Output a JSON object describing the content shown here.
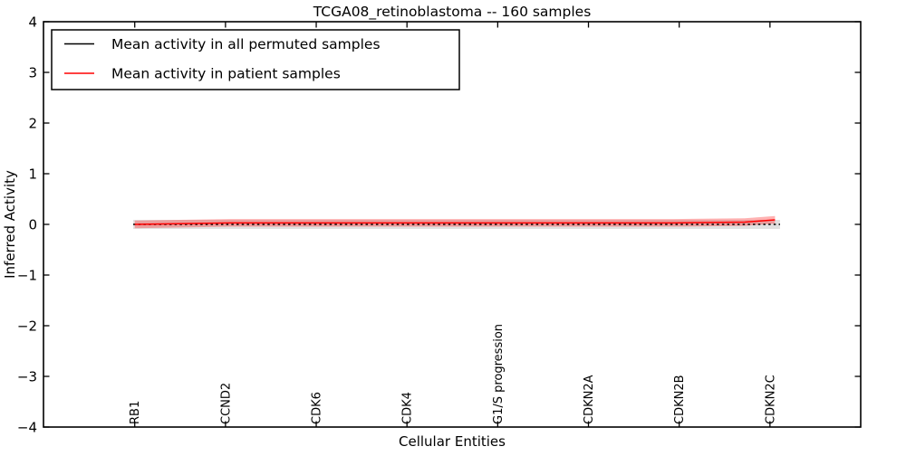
{
  "figure": {
    "background": "#ffffff",
    "frame_color": "#000000"
  },
  "chart_data": {
    "type": "line",
    "title": "TCGA08_retinoblastoma -- 160 samples",
    "xlabel": "Cellular Entities",
    "ylabel": "Inferred Activity",
    "ylim": [
      -4,
      4
    ],
    "xlim": [
      -17.1,
      145
    ],
    "grid": false,
    "yticks": [
      {
        "v": 4,
        "label": "4"
      },
      {
        "v": 3,
        "label": "3"
      },
      {
        "v": 2,
        "label": "2"
      },
      {
        "v": 1,
        "label": "1"
      },
      {
        "v": 0,
        "label": "0"
      },
      {
        "v": -1,
        "label": "−1"
      },
      {
        "v": -2,
        "label": "−2"
      },
      {
        "v": -3,
        "label": "−3"
      },
      {
        "v": -4,
        "label": "−4"
      }
    ],
    "xticks": [
      {
        "v": 1,
        "label": "RB1"
      },
      {
        "v": 19,
        "label": "CCND2"
      },
      {
        "v": 37,
        "label": "CDK6"
      },
      {
        "v": 55,
        "label": "CDK4"
      },
      {
        "v": 73,
        "label": "G1/S progression"
      },
      {
        "v": 91,
        "label": "CDKN2A"
      },
      {
        "v": 109,
        "label": "CDKN2B"
      },
      {
        "v": 127,
        "label": "CDKN2C"
      }
    ],
    "x_unit": "cellular entity index (~128 entities along the pathway)",
    "series": [
      {
        "name": "Mean activity in all permuted samples",
        "color": "#000000",
        "line_style": "dashed",
        "band": {
          "color": "#888888",
          "opacity": 0.25,
          "halfwidth": 0.09
        },
        "points": [
          [
            0.7,
            0.0
          ],
          [
            129,
            0.0
          ]
        ]
      },
      {
        "name": "Mean activity in patient samples",
        "color": "#ff0000",
        "line_style": "solid",
        "band": {
          "color": "#ff0000",
          "opacity": 0.3,
          "halfwidth": 0.075
        },
        "points": [
          [
            1,
            0.0
          ],
          [
            20,
            0.03
          ],
          [
            108,
            0.03
          ],
          [
            122,
            0.045
          ],
          [
            128,
            0.09
          ]
        ]
      }
    ],
    "legend": {
      "position": "upper left",
      "entries": [
        {
          "label": "Mean activity in all permuted samples",
          "color": "#000000"
        },
        {
          "label": "Mean activity in patient samples",
          "color": "#ff0000"
        }
      ]
    }
  }
}
